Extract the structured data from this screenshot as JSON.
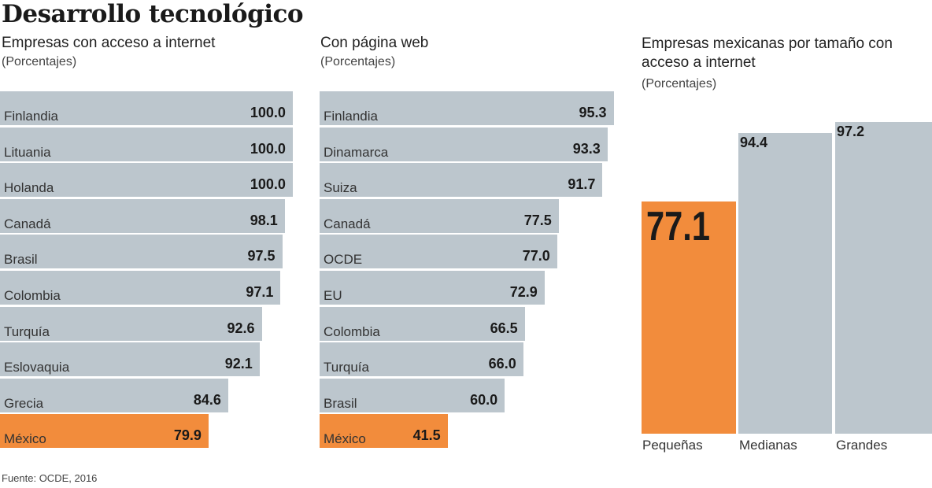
{
  "title": "Desarrollo tecnológico",
  "source": "Fuente: OCDE, 2016",
  "colors": {
    "bar": "#bcc6cd",
    "highlight": "#f28c3c"
  },
  "chart_data": [
    {
      "type": "bar",
      "orientation": "horizontal",
      "title": "Empresas con acceso a internet",
      "unit": "(Porcentajes)",
      "categories": [
        "Finlandia",
        "Lituania",
        "Holanda",
        "Canadá",
        "Brasil",
        "Colombia",
        "Turquía",
        "Eslovaquia",
        "Grecia",
        "México"
      ],
      "values": [
        100.0,
        100.0,
        100.0,
        98.1,
        97.5,
        97.1,
        92.6,
        92.1,
        84.6,
        79.9
      ],
      "highlight": "México"
    },
    {
      "type": "bar",
      "orientation": "horizontal",
      "title": "Con página web",
      "unit": "(Porcentajes)",
      "categories": [
        "Finlandia",
        "Dinamarca",
        "Suiza",
        "Canadá",
        "OCDE",
        "EU",
        "Colombia",
        "Turquía",
        "Brasil",
        "México"
      ],
      "values": [
        95.3,
        93.3,
        91.7,
        77.5,
        77.0,
        72.9,
        66.5,
        66.0,
        60.0,
        41.5
      ],
      "highlight": "México"
    },
    {
      "type": "bar",
      "orientation": "vertical",
      "title": "Empresas mexicanas por tamaño con acceso a internet",
      "unit": "(Porcentajes)",
      "categories": [
        "Pequeñas",
        "Medianas",
        "Grandes"
      ],
      "values": [
        77.1,
        94.4,
        97.2
      ],
      "highlight": "Pequeñas"
    }
  ]
}
